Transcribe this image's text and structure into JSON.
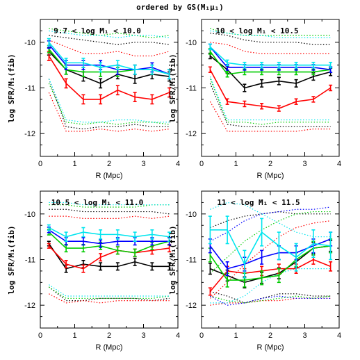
{
  "figure_title": "ordered by GS(M₁μ₁)",
  "chart_data": [
    {
      "type": "line",
      "label": "9.7  < log M₁ < 10.0",
      "xlabel": "R (Mpc)",
      "ylabel": "log SFR/M₁(fib)",
      "xlim": [
        0,
        4
      ],
      "ylim": [
        -12.5,
        -9.5
      ],
      "xticks": [
        0,
        1,
        2,
        3,
        4
      ],
      "yticks": [
        -10,
        -11,
        -12
      ],
      "x": [
        0.25,
        0.75,
        1.25,
        1.75,
        2.25,
        2.75,
        3.25,
        3.75
      ],
      "series": [
        {
          "color": "#000000",
          "values": [
            -10.2,
            -10.6,
            -10.75,
            -10.9,
            -10.7,
            -10.8,
            -10.7,
            -10.75
          ],
          "errors": [
            0.08,
            0.1,
            0.1,
            0.1,
            0.1,
            0.1,
            0.1,
            0.1
          ]
        },
        {
          "color": "#ff0000",
          "values": [
            -10.3,
            -10.9,
            -11.25,
            -11.25,
            -11.05,
            -11.2,
            -11.25,
            -11.1
          ],
          "errors": [
            0.1,
            0.1,
            0.1,
            0.1,
            0.1,
            0.1,
            0.1,
            0.1
          ]
        },
        {
          "color": "#00cc00",
          "values": [
            -10.15,
            -10.6,
            -10.65,
            -10.65,
            -10.65,
            -10.6,
            -10.6,
            -10.7
          ],
          "errors": [
            0.08,
            0.1,
            0.1,
            0.1,
            0.1,
            0.1,
            0.1,
            0.1
          ]
        },
        {
          "color": "#0000ff",
          "values": [
            -10.05,
            -10.5,
            -10.5,
            -10.5,
            -10.6,
            -10.6,
            -10.55,
            -10.7
          ],
          "errors": [
            0.08,
            0.1,
            0.1,
            0.1,
            0.1,
            0.1,
            0.1,
            0.1
          ]
        },
        {
          "color": "#00e5ee",
          "values": [
            -10.0,
            -10.45,
            -10.45,
            -10.55,
            -10.5,
            -10.6,
            -10.6,
            -10.7
          ],
          "errors": [
            0.08,
            0.1,
            0.1,
            0.1,
            0.1,
            0.1,
            0.1,
            0.1
          ]
        },
        {
          "color": "#000000",
          "dotted": true,
          "values": [
            -9.85,
            -9.9,
            -9.95,
            -10.0,
            -10.05,
            -10.0,
            -10.0,
            -10.05
          ]
        },
        {
          "color": "#000000",
          "dotted": true,
          "values": [
            -10.8,
            -11.85,
            -11.9,
            -11.85,
            -11.85,
            -11.8,
            -11.85,
            -11.85
          ]
        },
        {
          "color": "#ff0000",
          "dotted": true,
          "values": [
            -9.95,
            -10.1,
            -10.25,
            -10.25,
            -10.2,
            -10.3,
            -10.3,
            -10.2
          ]
        },
        {
          "color": "#ff0000",
          "dotted": true,
          "values": [
            -11.1,
            -11.95,
            -11.95,
            -11.9,
            -11.95,
            -11.9,
            -11.95,
            -11.9
          ]
        },
        {
          "color": "#00cc00",
          "dotted": true,
          "values": [
            -9.7,
            -9.75,
            -9.8,
            -9.85,
            -9.8,
            -9.85,
            -9.9,
            -9.85
          ]
        },
        {
          "color": "#00cc00",
          "dotted": true,
          "values": [
            -10.9,
            -11.75,
            -11.8,
            -11.75,
            -11.8,
            -11.75,
            -11.75,
            -11.8
          ]
        },
        {
          "color": "#00e5ee",
          "dotted": true,
          "values": [
            -9.75,
            -9.8,
            -9.85,
            -9.85,
            -9.9,
            -9.85,
            -9.85,
            -9.9
          ]
        },
        {
          "color": "#00e5ee",
          "dotted": true,
          "values": [
            -10.8,
            -11.7,
            -11.75,
            -11.75,
            -11.7,
            -11.7,
            -11.75,
            -11.75
          ]
        }
      ]
    },
    {
      "type": "line",
      "label": "10 < log M₁ < 10.5",
      "xlabel": "R (Mpc)",
      "ylabel": "log SFR/M₁(fib)",
      "xlim": [
        0,
        4
      ],
      "ylim": [
        -12.5,
        -9.5
      ],
      "xticks": [
        0,
        1,
        2,
        3,
        4
      ],
      "yticks": [
        -10,
        -11,
        -12
      ],
      "x": [
        0.25,
        0.75,
        1.25,
        1.75,
        2.25,
        2.75,
        3.25,
        3.75
      ],
      "series": [
        {
          "color": "#000000",
          "values": [
            -10.3,
            -10.6,
            -11.0,
            -10.9,
            -10.85,
            -10.9,
            -10.75,
            -10.65
          ],
          "errors": [
            0.06,
            0.08,
            0.08,
            0.08,
            0.08,
            0.08,
            0.08,
            0.08
          ]
        },
        {
          "color": "#ff0000",
          "values": [
            -10.6,
            -11.3,
            -11.35,
            -11.4,
            -11.45,
            -11.3,
            -11.25,
            -11.0
          ],
          "errors": [
            0.06,
            0.06,
            0.06,
            0.06,
            0.06,
            0.06,
            0.06,
            0.06
          ]
        },
        {
          "color": "#00cc00",
          "values": [
            -10.2,
            -10.7,
            -10.65,
            -10.65,
            -10.65,
            -10.65,
            -10.65,
            -10.6
          ],
          "errors": [
            0.06,
            0.06,
            0.06,
            0.06,
            0.06,
            0.06,
            0.06,
            0.06
          ]
        },
        {
          "color": "#0000ff",
          "values": [
            -10.1,
            -10.55,
            -10.55,
            -10.55,
            -10.55,
            -10.55,
            -10.55,
            -10.6
          ],
          "errors": [
            0.06,
            0.06,
            0.06,
            0.06,
            0.06,
            0.06,
            0.06,
            0.06
          ]
        },
        {
          "color": "#00e5ee",
          "values": [
            -10.1,
            -10.45,
            -10.5,
            -10.5,
            -10.5,
            -10.5,
            -10.5,
            -10.5
          ],
          "errors": [
            0.06,
            0.06,
            0.06,
            0.06,
            0.06,
            0.06,
            0.06,
            0.06
          ]
        },
        {
          "color": "#000000",
          "dotted": true,
          "values": [
            -9.8,
            -9.85,
            -9.95,
            -10.0,
            -10.0,
            -10.0,
            -10.05,
            -10.05
          ]
        },
        {
          "color": "#000000",
          "dotted": true,
          "values": [
            -10.9,
            -11.8,
            -11.85,
            -11.85,
            -11.85,
            -11.85,
            -11.85,
            -11.85
          ]
        },
        {
          "color": "#ff0000",
          "dotted": true,
          "values": [
            -10.0,
            -10.05,
            -10.2,
            -10.25,
            -10.25,
            -10.25,
            -10.25,
            -10.25
          ]
        },
        {
          "color": "#ff0000",
          "dotted": true,
          "values": [
            -11.3,
            -11.95,
            -11.95,
            -11.95,
            -11.95,
            -11.95,
            -11.9,
            -11.9
          ]
        },
        {
          "color": "#00cc00",
          "dotted": true,
          "values": [
            -9.7,
            -9.8,
            -9.85,
            -9.85,
            -9.85,
            -9.85,
            -9.85,
            -9.85
          ]
        },
        {
          "color": "#00cc00",
          "dotted": true,
          "values": [
            -10.8,
            -11.75,
            -11.75,
            -11.8,
            -11.75,
            -11.75,
            -11.75,
            -11.75
          ]
        },
        {
          "color": "#00e5ee",
          "dotted": true,
          "values": [
            -9.75,
            -9.8,
            -9.85,
            -9.85,
            -9.9,
            -9.9,
            -9.9,
            -9.9
          ]
        },
        {
          "color": "#00e5ee",
          "dotted": true,
          "values": [
            -10.75,
            -11.7,
            -11.7,
            -11.7,
            -11.7,
            -11.7,
            -11.7,
            -11.7
          ]
        }
      ]
    },
    {
      "type": "line",
      "label": "10.5  < log M₁ < 11.0",
      "xlabel": "R (Mpc)",
      "ylabel": "log SFR/M₁(fib)",
      "xlim": [
        0,
        4
      ],
      "ylim": [
        -12.5,
        -9.5
      ],
      "xticks": [
        0,
        1,
        2,
        3,
        4
      ],
      "yticks": [
        -10,
        -11,
        -12
      ],
      "x": [
        0.25,
        0.75,
        1.25,
        1.75,
        2.25,
        2.75,
        3.25,
        3.75
      ],
      "series": [
        {
          "color": "#000000",
          "values": [
            -10.65,
            -11.2,
            -11.1,
            -11.15,
            -11.15,
            -11.05,
            -11.15,
            -11.15
          ],
          "errors": [
            0.05,
            0.08,
            0.08,
            0.08,
            0.08,
            0.08,
            0.08,
            0.08
          ]
        },
        {
          "color": "#ff0000",
          "values": [
            -10.7,
            -11.1,
            -11.2,
            -10.95,
            -10.8,
            -10.85,
            -10.8,
            -10.75
          ],
          "errors": [
            0.05,
            0.08,
            0.08,
            0.08,
            0.08,
            0.08,
            0.08,
            0.08
          ]
        },
        {
          "color": "#00cc00",
          "values": [
            -10.4,
            -10.75,
            -10.75,
            -10.7,
            -10.8,
            -10.85,
            -10.7,
            -10.6
          ],
          "errors": [
            0.06,
            0.08,
            0.08,
            0.08,
            0.08,
            0.08,
            0.08,
            0.08
          ]
        },
        {
          "color": "#0000ff",
          "values": [
            -10.35,
            -10.6,
            -10.6,
            -10.65,
            -10.6,
            -10.6,
            -10.6,
            -10.6
          ],
          "errors": [
            0.06,
            0.08,
            0.08,
            0.08,
            0.08,
            0.08,
            0.08,
            0.08
          ]
        },
        {
          "color": "#00e5ee",
          "values": [
            -10.3,
            -10.5,
            -10.4,
            -10.45,
            -10.45,
            -10.5,
            -10.45,
            -10.5
          ],
          "errors": [
            0.06,
            0.1,
            0.1,
            0.1,
            0.1,
            0.1,
            0.1,
            0.1
          ]
        },
        {
          "color": "#000000",
          "dotted": true,
          "values": [
            -9.9,
            -9.9,
            -9.95,
            -9.95,
            -9.95,
            -9.95,
            -9.95,
            -10.0
          ]
        },
        {
          "color": "#000000",
          "dotted": true,
          "values": [
            -11.6,
            -11.9,
            -11.9,
            -11.85,
            -11.85,
            -11.85,
            -11.9,
            -11.85
          ]
        },
        {
          "color": "#ff0000",
          "dotted": true,
          "values": [
            -10.05,
            -10.05,
            -10.1,
            -10.1,
            -10.1,
            -10.05,
            -10.1,
            -10.05
          ]
        },
        {
          "color": "#ff0000",
          "dotted": true,
          "values": [
            -11.75,
            -11.95,
            -11.9,
            -11.95,
            -11.9,
            -11.9,
            -11.9,
            -11.9
          ]
        },
        {
          "color": "#00cc00",
          "dotted": true,
          "values": [
            -9.8,
            -9.8,
            -9.85,
            -9.85,
            -9.85,
            -9.85,
            -9.8,
            -9.8
          ]
        },
        {
          "color": "#00cc00",
          "dotted": true,
          "values": [
            -11.6,
            -11.85,
            -11.85,
            -11.85,
            -11.85,
            -11.85,
            -11.85,
            -11.8
          ]
        },
        {
          "color": "#00e5ee",
          "dotted": true,
          "values": [
            -9.75,
            -9.75,
            -9.8,
            -9.8,
            -9.8,
            -9.8,
            -9.8,
            -9.8
          ]
        },
        {
          "color": "#00e5ee",
          "dotted": true,
          "values": [
            -11.55,
            -11.8,
            -11.8,
            -11.8,
            -11.8,
            -11.8,
            -11.8,
            -11.8
          ]
        }
      ]
    },
    {
      "type": "line",
      "label": "11 < log M₁ < 11.5",
      "xlabel": "R (Mpc)",
      "ylabel": "log SFR/M₁(fib)",
      "xlim": [
        0,
        4
      ],
      "ylim": [
        -12.5,
        -9.5
      ],
      "xticks": [
        0,
        1,
        2,
        3,
        4
      ],
      "yticks": [
        -10,
        -11,
        -12
      ],
      "x": [
        0.25,
        0.75,
        1.25,
        1.75,
        2.25,
        2.75,
        3.25,
        3.75
      ],
      "series": [
        {
          "color": "#000000",
          "values": [
            -11.2,
            -11.35,
            -11.5,
            -11.4,
            -11.3,
            -11.05,
            -10.75,
            -10.7
          ],
          "errors": [
            0.12,
            0.12,
            0.12,
            0.12,
            0.12,
            0.12,
            0.12,
            0.12
          ]
        },
        {
          "color": "#ff0000",
          "values": [
            -11.7,
            -11.25,
            -11.3,
            -11.25,
            -11.2,
            -11.2,
            -11.0,
            -11.15
          ],
          "errors": [
            0.08,
            0.1,
            0.1,
            0.1,
            0.1,
            0.1,
            0.1,
            0.1
          ]
        },
        {
          "color": "#00cc00",
          "values": [
            -10.9,
            -11.45,
            -11.45,
            -11.4,
            -11.35,
            -11.0,
            -10.75,
            -10.7
          ],
          "errors": [
            0.15,
            0.15,
            0.15,
            0.15,
            0.15,
            0.15,
            0.15,
            0.15
          ]
        },
        {
          "color": "#0000ff",
          "values": [
            -10.7,
            -11.2,
            -11.1,
            -10.95,
            -10.85,
            -10.85,
            -10.7,
            -10.55
          ],
          "errors": [
            0.15,
            0.15,
            0.15,
            0.15,
            0.15,
            0.15,
            0.15,
            0.15
          ]
        },
        {
          "color": "#00e5ee",
          "values": [
            -10.35,
            -10.35,
            -11.1,
            -10.4,
            -10.7,
            -10.95,
            -10.65,
            -10.7
          ],
          "errors": [
            0.3,
            0.3,
            0.3,
            0.3,
            0.3,
            0.3,
            0.3,
            0.3
          ]
        },
        {
          "color": "#000000",
          "dotted": true,
          "values": [
            -10.3,
            -10.15,
            -10.05,
            -10.0,
            -9.95,
            -10.0,
            -10.0,
            -10.0
          ]
        },
        {
          "color": "#000000",
          "dotted": true,
          "values": [
            -11.7,
            -11.8,
            -11.95,
            -11.85,
            -11.75,
            -11.75,
            -11.8,
            -11.8
          ]
        },
        {
          "color": "#ff0000",
          "dotted": true,
          "values": [
            -11.85,
            -11.5,
            -11.1,
            -10.8,
            -10.5,
            -10.3,
            -10.2,
            -10.15
          ]
        },
        {
          "color": "#ff0000",
          "dotted": true,
          "values": [
            -12.0,
            -11.95,
            -11.95,
            -11.9,
            -11.9,
            -11.85,
            -11.85,
            -11.85
          ]
        },
        {
          "color": "#00cc00",
          "dotted": true,
          "values": [
            -11.3,
            -10.95,
            -10.6,
            -10.35,
            -10.15,
            -10.0,
            -9.95,
            -9.95
          ]
        },
        {
          "color": "#00cc00",
          "dotted": true,
          "values": [
            -11.8,
            -11.9,
            -11.95,
            -11.9,
            -11.85,
            -11.8,
            -11.85,
            -11.8
          ]
        },
        {
          "color": "#0000ff",
          "dotted": true,
          "values": [
            -10.6,
            -10.4,
            -10.15,
            -10.0,
            -9.95,
            -9.9,
            -9.9,
            -9.85
          ]
        },
        {
          "color": "#0000ff",
          "dotted": true,
          "values": [
            -11.8,
            -12.0,
            -11.95,
            -11.85,
            -11.8,
            -11.85,
            -11.85,
            -11.85
          ]
        },
        {
          "color": "#00e5ee",
          "dotted": true,
          "values": [
            -9.9,
            -9.75,
            -9.8,
            -10.0,
            -10.2,
            -10.4,
            -10.5,
            -10.5
          ]
        },
        {
          "color": "#00e5ee",
          "dotted": true,
          "values": [
            -11.95,
            -11.95,
            -11.8,
            -11.5,
            -11.3,
            -11.2,
            -11.2,
            -11.2
          ]
        }
      ]
    }
  ]
}
